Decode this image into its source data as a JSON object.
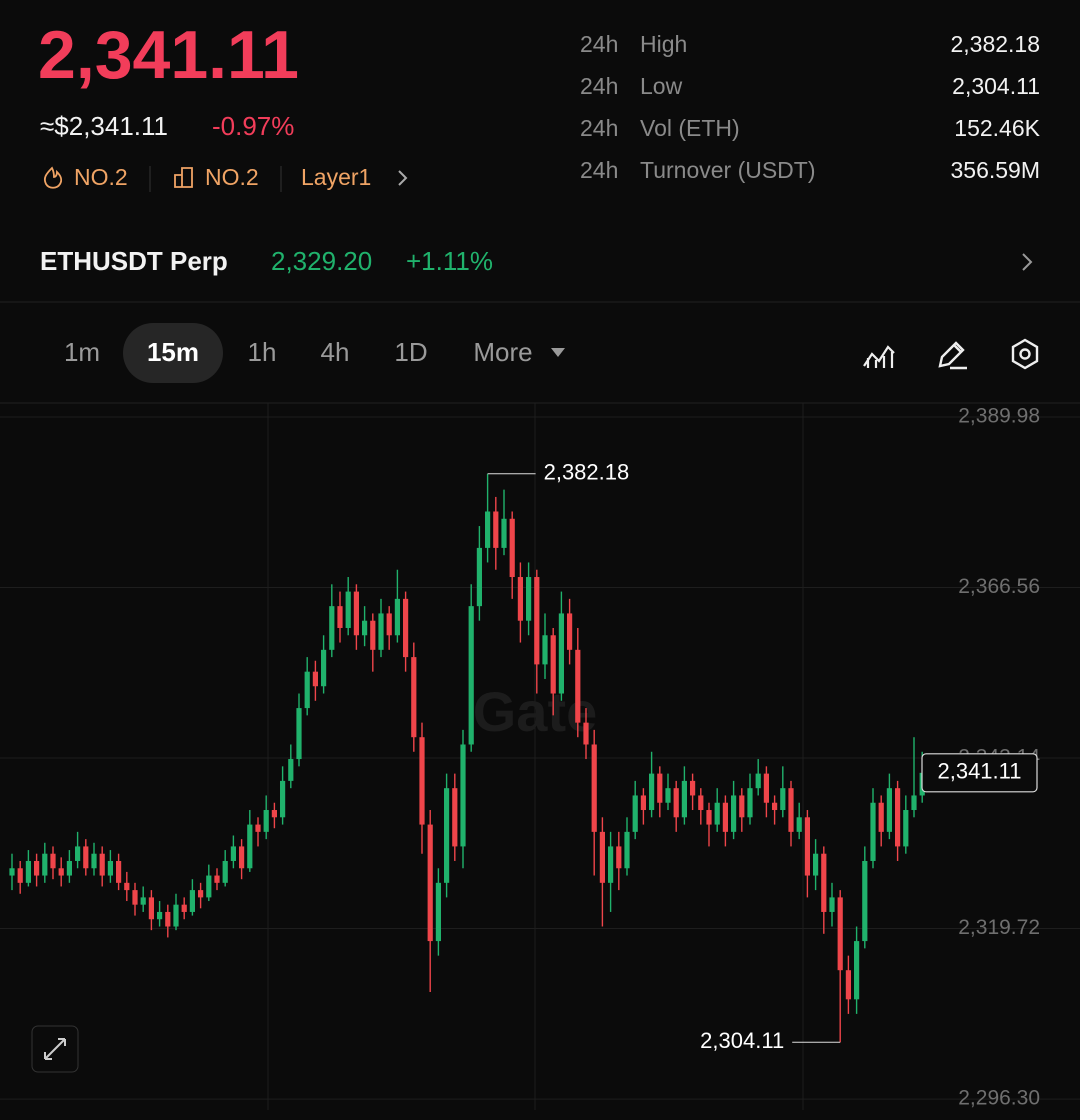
{
  "header": {
    "price": "2,341.11",
    "approx": "≈$2,341.11",
    "change": "-0.97%",
    "tags": [
      "NO.2",
      "NO.2",
      "Layer1"
    ]
  },
  "stats": [
    {
      "period": "24h",
      "label": "High",
      "value": "2,382.18"
    },
    {
      "period": "24h",
      "label": "Low",
      "value": "2,304.11"
    },
    {
      "period": "24h",
      "label": "Vol (ETH)",
      "value": "152.46K"
    },
    {
      "period": "24h",
      "label": "Turnover (USDT)",
      "value": "356.59M"
    }
  ],
  "perp": {
    "name": "ETHUSDT Perp",
    "price": "2,329.20",
    "change": "+1.11%"
  },
  "timeframes": {
    "items": [
      "1m",
      "15m",
      "1h",
      "4h",
      "1D",
      "More"
    ],
    "active": 1
  },
  "chart_data": {
    "type": "candlestick",
    "watermark": "Gate",
    "up_color": "#20b26c",
    "down_color": "#ef454a",
    "grid": true,
    "ylim": [
      2294.8,
      2391.9
    ],
    "yticks": [
      {
        "value": 2389.98,
        "label": "2,389.98"
      },
      {
        "value": 2366.56,
        "label": "2,366.56"
      },
      {
        "value": 2343.14,
        "label": "2,343.14"
      },
      {
        "value": 2319.72,
        "label": "2,319.72"
      },
      {
        "value": 2296.3,
        "label": "2,296.30"
      }
    ],
    "high": {
      "value": 2382.18,
      "label": "2,382.18"
    },
    "low": {
      "value": 2304.11,
      "label": "2,304.11"
    },
    "last": {
      "value": 2341.11,
      "label": "2,341.11"
    },
    "candles": [
      [
        2327,
        2330,
        2325,
        2328
      ],
      [
        2328,
        2329,
        2324.5,
        2326
      ],
      [
        2326,
        2330.5,
        2325.5,
        2329
      ],
      [
        2329,
        2330,
        2325.5,
        2327
      ],
      [
        2327,
        2331.5,
        2326,
        2330
      ],
      [
        2330,
        2331,
        2326.5,
        2328
      ],
      [
        2328,
        2329.5,
        2325.5,
        2327
      ],
      [
        2327,
        2330.5,
        2326,
        2329
      ],
      [
        2329,
        2333,
        2328,
        2331
      ],
      [
        2331,
        2332,
        2327,
        2328
      ],
      [
        2328,
        2331.5,
        2327,
        2330
      ],
      [
        2330,
        2331,
        2325.5,
        2327
      ],
      [
        2327,
        2330.5,
        2326,
        2329
      ],
      [
        2329,
        2330,
        2325,
        2326
      ],
      [
        2326,
        2327.5,
        2323.5,
        2325
      ],
      [
        2325,
        2326,
        2321.5,
        2323
      ],
      [
        2323,
        2325.5,
        2322,
        2324
      ],
      [
        2324,
        2325,
        2319.5,
        2321
      ],
      [
        2321,
        2323.5,
        2320,
        2322
      ],
      [
        2322,
        2323,
        2318.5,
        2320
      ],
      [
        2320,
        2324.5,
        2319.5,
        2323
      ],
      [
        2323,
        2324,
        2321,
        2322
      ],
      [
        2322,
        2326.5,
        2321.5,
        2325
      ],
      [
        2325,
        2326,
        2322.5,
        2324
      ],
      [
        2324,
        2328.5,
        2323.5,
        2327
      ],
      [
        2327,
        2328,
        2325,
        2326
      ],
      [
        2326,
        2330.5,
        2325.5,
        2329
      ],
      [
        2329,
        2332.5,
        2328,
        2331
      ],
      [
        2331,
        2332,
        2326.5,
        2328
      ],
      [
        2328,
        2336,
        2327.5,
        2334
      ],
      [
        2334,
        2335,
        2331,
        2333
      ],
      [
        2333,
        2338,
        2332,
        2336
      ],
      [
        2336,
        2337,
        2333.5,
        2335
      ],
      [
        2335,
        2342,
        2334,
        2340
      ],
      [
        2340,
        2345,
        2339,
        2343
      ],
      [
        2343,
        2352,
        2342,
        2350
      ],
      [
        2350,
        2357,
        2349,
        2355
      ],
      [
        2355,
        2356.5,
        2351,
        2353
      ],
      [
        2353,
        2360,
        2352,
        2358
      ],
      [
        2358,
        2367,
        2357,
        2364
      ],
      [
        2364,
        2366,
        2359,
        2361
      ],
      [
        2361,
        2368,
        2360,
        2366
      ],
      [
        2366,
        2367,
        2358,
        2360
      ],
      [
        2360,
        2364,
        2358.5,
        2362
      ],
      [
        2362,
        2363,
        2355,
        2358
      ],
      [
        2358,
        2365,
        2357,
        2363
      ],
      [
        2363,
        2364,
        2358,
        2360
      ],
      [
        2360,
        2369,
        2359,
        2365
      ],
      [
        2365,
        2366,
        2355,
        2357
      ],
      [
        2357,
        2359,
        2344,
        2346
      ],
      [
        2346,
        2348,
        2330,
        2334
      ],
      [
        2334,
        2336,
        2311,
        2318
      ],
      [
        2318,
        2328,
        2316,
        2326
      ],
      [
        2326,
        2341,
        2324,
        2339
      ],
      [
        2339,
        2341,
        2329,
        2331
      ],
      [
        2331,
        2347,
        2328,
        2345
      ],
      [
        2345,
        2367,
        2344,
        2364
      ],
      [
        2364,
        2375,
        2362,
        2372
      ],
      [
        2372,
        2382.18,
        2370,
        2377
      ],
      [
        2377,
        2379,
        2369,
        2372
      ],
      [
        2372,
        2380,
        2371,
        2376
      ],
      [
        2376,
        2377,
        2365,
        2368
      ],
      [
        2368,
        2370,
        2359,
        2362
      ],
      [
        2362,
        2370,
        2360,
        2368
      ],
      [
        2368,
        2369,
        2352,
        2356
      ],
      [
        2356,
        2363,
        2354,
        2360
      ],
      [
        2360,
        2361,
        2349,
        2352
      ],
      [
        2352,
        2366,
        2351,
        2363
      ],
      [
        2363,
        2365,
        2356,
        2358
      ],
      [
        2358,
        2361,
        2346,
        2348
      ],
      [
        2348,
        2350,
        2343,
        2345
      ],
      [
        2345,
        2347,
        2327,
        2333
      ],
      [
        2333,
        2335,
        2320,
        2326
      ],
      [
        2326,
        2333,
        2322,
        2331
      ],
      [
        2331,
        2333,
        2325,
        2328
      ],
      [
        2328,
        2335,
        2327,
        2333
      ],
      [
        2333,
        2340,
        2332,
        2338
      ],
      [
        2338,
        2339,
        2334,
        2336
      ],
      [
        2336,
        2344,
        2335,
        2341
      ],
      [
        2341,
        2342,
        2335,
        2337
      ],
      [
        2337,
        2341,
        2336,
        2339
      ],
      [
        2339,
        2340,
        2333,
        2335
      ],
      [
        2335,
        2342,
        2334,
        2340
      ],
      [
        2340,
        2341,
        2336,
        2338
      ],
      [
        2338,
        2339,
        2334,
        2336
      ],
      [
        2336,
        2337,
        2331,
        2334
      ],
      [
        2334,
        2339,
        2333,
        2337
      ],
      [
        2337,
        2338,
        2331,
        2333
      ],
      [
        2333,
        2340,
        2332,
        2338
      ],
      [
        2338,
        2339,
        2333,
        2335
      ],
      [
        2335,
        2341,
        2334,
        2339
      ],
      [
        2339,
        2343,
        2338,
        2341
      ],
      [
        2341,
        2342,
        2335,
        2337
      ],
      [
        2337,
        2338,
        2334,
        2336
      ],
      [
        2336,
        2342,
        2335,
        2339
      ],
      [
        2339,
        2340,
        2331,
        2333
      ],
      [
        2333,
        2337,
        2332,
        2335
      ],
      [
        2335,
        2336,
        2324,
        2327
      ],
      [
        2327,
        2332,
        2325,
        2330
      ],
      [
        2330,
        2331,
        2319,
        2322
      ],
      [
        2322,
        2326,
        2320,
        2324
      ],
      [
        2324,
        2325,
        2304.11,
        2314
      ],
      [
        2314,
        2316,
        2308,
        2310
      ],
      [
        2310,
        2320,
        2308,
        2318
      ],
      [
        2318,
        2331,
        2317,
        2329
      ],
      [
        2329,
        2339,
        2328,
        2337
      ],
      [
        2337,
        2338,
        2331,
        2333
      ],
      [
        2333,
        2341,
        2332,
        2339
      ],
      [
        2339,
        2340,
        2329,
        2331
      ],
      [
        2331,
        2338,
        2330,
        2336
      ],
      [
        2336,
        2346,
        2335,
        2338
      ],
      [
        2338,
        2344,
        2337,
        2341.11
      ]
    ]
  }
}
